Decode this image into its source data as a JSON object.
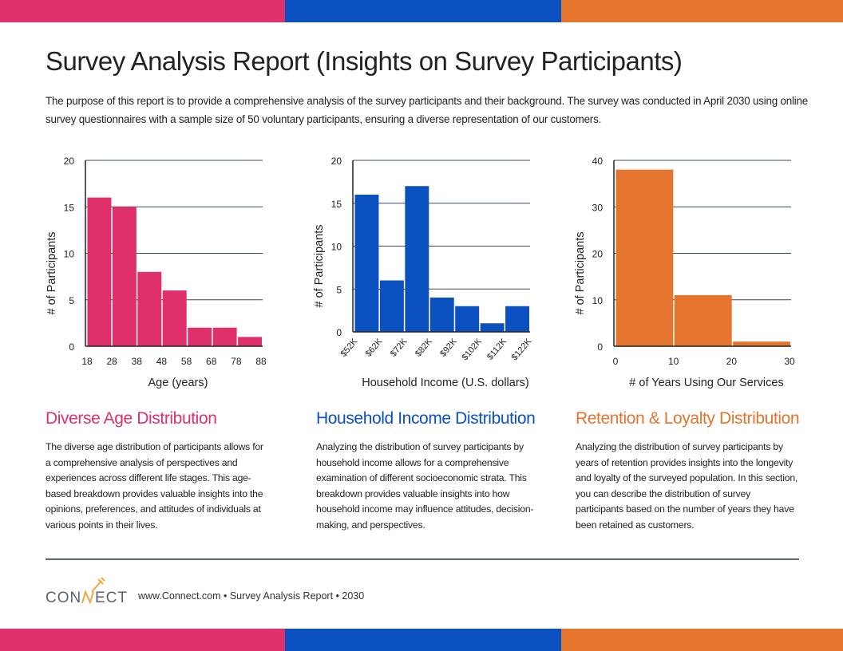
{
  "colors": {
    "pink": "#e0306c",
    "blue": "#0b50bf",
    "orange": "#e5742e"
  },
  "title": "Survey Analysis Report (Insights on Survey Participants)",
  "intro": "The purpose of this report is to provide a comprehensive analysis of the survey participants and their background. The survey was conducted in April 2030 using online survey questionnaires with a sample size of 50 voluntary participants, ensuring a diverse representation of our customers.",
  "chart_data": [
    {
      "type": "bar",
      "xlabel": "Age (years)",
      "ylabel": "# of Participants",
      "ylim": [
        0,
        20
      ],
      "yticks": [
        0,
        5,
        10,
        15,
        20
      ],
      "xticks": [
        "18",
        "28",
        "38",
        "48",
        "58",
        "68",
        "78",
        "88"
      ],
      "bin_edges": [
        18,
        28,
        38,
        48,
        58,
        68,
        78,
        88
      ],
      "values": [
        16,
        15,
        8,
        6,
        2,
        2,
        1
      ],
      "color": "#e0306c",
      "grid": true,
      "rotated_ticks": false
    },
    {
      "type": "bar",
      "xlabel": "Household Income (U.S. dollars)",
      "ylabel": "# of Participants",
      "ylim": [
        0,
        20
      ],
      "yticks": [
        0,
        5,
        10,
        15,
        20
      ],
      "xticks": [
        "$52K",
        "$62K",
        "$72K",
        "$82K",
        "$92K",
        "$102K",
        "$112K",
        "$122K"
      ],
      "values": [
        16,
        6,
        17,
        4,
        3,
        1,
        3
      ],
      "color": "#0b50bf",
      "grid": true,
      "rotated_ticks": true
    },
    {
      "type": "bar",
      "xlabel": "# of Years Using Our Services",
      "ylabel": "# of Participants",
      "ylim": [
        0,
        40
      ],
      "yticks": [
        0,
        10,
        20,
        30,
        40
      ],
      "xlim": [
        0,
        30
      ],
      "xticks": [
        "0",
        "10",
        "20",
        "30"
      ],
      "bin_edges": [
        0,
        10,
        20,
        30
      ],
      "values": [
        38,
        11,
        1
      ],
      "color": "#e5742e",
      "grid": true,
      "rotated_ticks": false
    }
  ],
  "sections": [
    {
      "title": "Diverse Age Distribution",
      "body": "The diverse age distribution of participants allows for a comprehensive analysis of perspectives and experiences across different life stages. This age-based breakdown provides valuable insights into the opinions, preferences, and attitudes of individuals at various points in their lives."
    },
    {
      "title": "Household Income Distribution",
      "body": "Analyzing the distribution of survey participants by household income allows for a comprehensive examination of different socioeconomic strata. This breakdown provides valuable insights into how household income may influence attitudes, decision-making, and perspectives."
    },
    {
      "title": "Retention & Loyalty Distribution",
      "body": "Analyzing the distribution of survey participants by years of retention provides insights into the longevity and loyalty of the surveyed population. In this section, you can describe the distribution of survey participants based on the number of years they have been retained as customers."
    }
  ],
  "footer": {
    "logo": "CONNECT",
    "text": "www.Connect.com •  Survey Analysis Report • 2030"
  }
}
